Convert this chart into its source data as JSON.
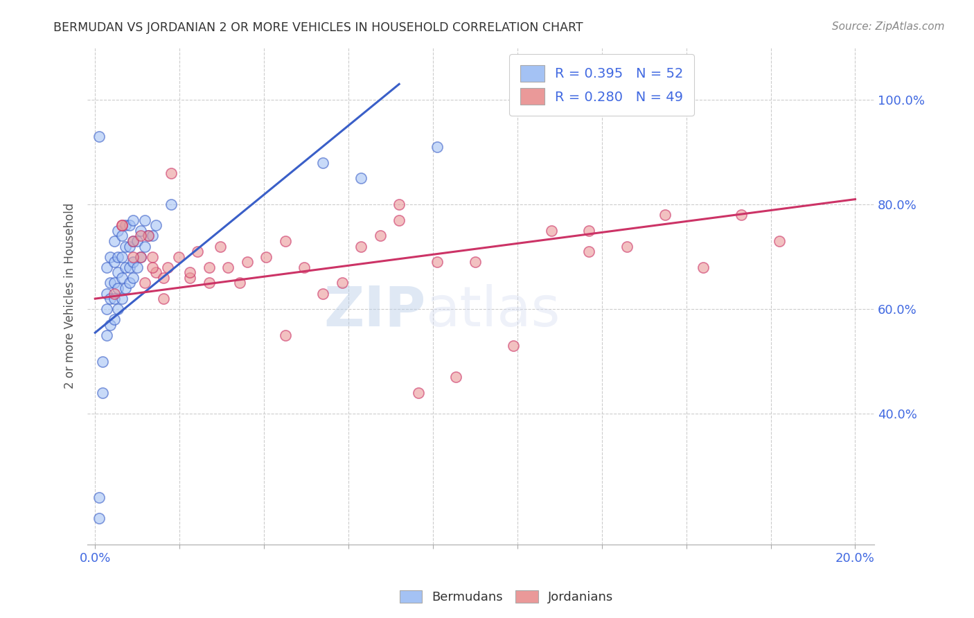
{
  "title": "BERMUDAN VS JORDANIAN 2 OR MORE VEHICLES IN HOUSEHOLD CORRELATION CHART",
  "source": "Source: ZipAtlas.com",
  "ylabel": "2 or more Vehicles in Household",
  "watermark": "ZIPatlas",
  "legend_blue_r": "R = 0.395",
  "legend_blue_n": "N = 52",
  "legend_pink_r": "R = 0.280",
  "legend_pink_n": "N = 49",
  "blue_color": "#a4c2f4",
  "pink_color": "#ea9999",
  "blue_line_color": "#3a5fc8",
  "pink_line_color": "#cc3366",
  "title_color": "#333333",
  "axis_tick_color": "#4169e1",
  "grid_color": "#cccccc",
  "background_color": "#ffffff",
  "blue_line_x0": 0.0,
  "blue_line_y0": 0.555,
  "blue_line_x1": 0.08,
  "blue_line_y1": 1.03,
  "pink_line_x0": 0.0,
  "pink_line_y0": 0.62,
  "pink_line_x1": 0.2,
  "pink_line_y1": 0.81,
  "bermuda_scatter_x": [
    0.001,
    0.001,
    0.002,
    0.002,
    0.003,
    0.003,
    0.003,
    0.003,
    0.004,
    0.004,
    0.004,
    0.004,
    0.005,
    0.005,
    0.005,
    0.005,
    0.005,
    0.006,
    0.006,
    0.006,
    0.006,
    0.006,
    0.007,
    0.007,
    0.007,
    0.007,
    0.008,
    0.008,
    0.008,
    0.008,
    0.009,
    0.009,
    0.009,
    0.009,
    0.01,
    0.01,
    0.01,
    0.01,
    0.011,
    0.011,
    0.012,
    0.012,
    0.013,
    0.013,
    0.014,
    0.015,
    0.016,
    0.02,
    0.06,
    0.07,
    0.09,
    0.001
  ],
  "bermuda_scatter_y": [
    0.2,
    0.24,
    0.44,
    0.5,
    0.55,
    0.6,
    0.63,
    0.68,
    0.57,
    0.62,
    0.65,
    0.7,
    0.58,
    0.62,
    0.65,
    0.69,
    0.73,
    0.6,
    0.64,
    0.67,
    0.7,
    0.75,
    0.62,
    0.66,
    0.7,
    0.74,
    0.64,
    0.68,
    0.72,
    0.76,
    0.65,
    0.68,
    0.72,
    0.76,
    0.66,
    0.69,
    0.73,
    0.77,
    0.68,
    0.73,
    0.7,
    0.75,
    0.72,
    0.77,
    0.74,
    0.74,
    0.76,
    0.8,
    0.88,
    0.85,
    0.91,
    0.93
  ],
  "jordan_scatter_x": [
    0.005,
    0.007,
    0.01,
    0.012,
    0.013,
    0.014,
    0.015,
    0.016,
    0.018,
    0.019,
    0.02,
    0.022,
    0.025,
    0.027,
    0.03,
    0.033,
    0.035,
    0.038,
    0.04,
    0.045,
    0.05,
    0.055,
    0.06,
    0.065,
    0.07,
    0.075,
    0.08,
    0.085,
    0.09,
    0.095,
    0.1,
    0.11,
    0.12,
    0.13,
    0.14,
    0.15,
    0.16,
    0.17,
    0.18,
    0.007,
    0.01,
    0.012,
    0.015,
    0.018,
    0.025,
    0.03,
    0.05,
    0.08,
    0.13
  ],
  "jordan_scatter_y": [
    0.63,
    0.76,
    0.73,
    0.7,
    0.65,
    0.74,
    0.7,
    0.67,
    0.66,
    0.68,
    0.86,
    0.7,
    0.66,
    0.71,
    0.68,
    0.72,
    0.68,
    0.65,
    0.69,
    0.7,
    0.55,
    0.68,
    0.63,
    0.65,
    0.72,
    0.74,
    0.77,
    0.44,
    0.69,
    0.47,
    0.69,
    0.53,
    0.75,
    0.75,
    0.72,
    0.78,
    0.68,
    0.78,
    0.73,
    0.76,
    0.7,
    0.74,
    0.68,
    0.62,
    0.67,
    0.65,
    0.73,
    0.8,
    0.71
  ],
  "xlim": [
    -0.002,
    0.205
  ],
  "ylim": [
    0.15,
    1.1
  ],
  "yticks": [
    0.4,
    0.6,
    0.8,
    1.0
  ],
  "xtick_count": 10,
  "figsize": [
    14.06,
    8.92
  ],
  "dpi": 100
}
